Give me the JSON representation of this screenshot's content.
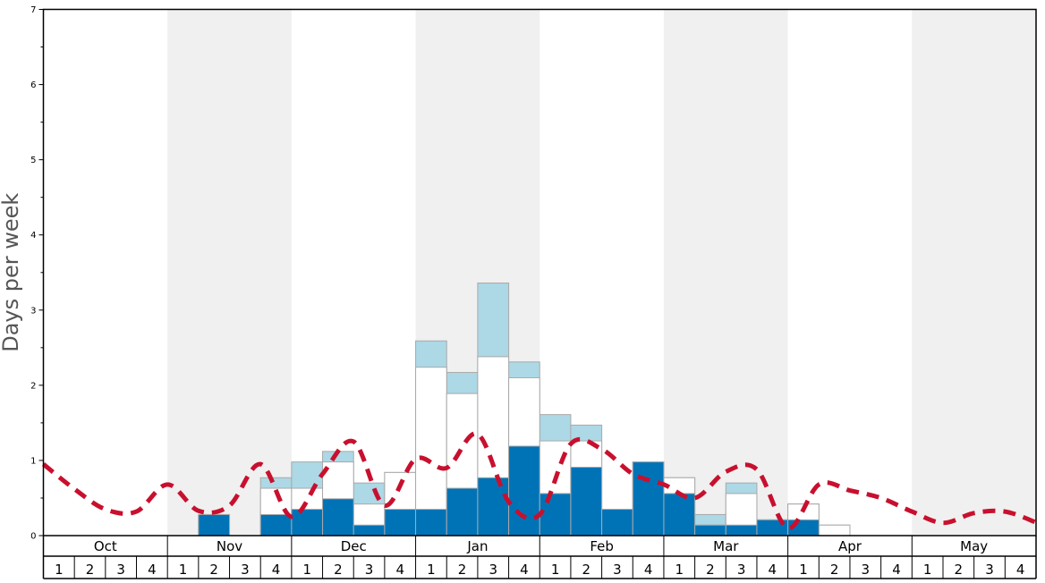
{
  "colors": {
    "band_shade": "#f0f0f0",
    "bar_dark": "#0073b7",
    "bar_mid": "#ffffff",
    "bar_light": "#add8e6",
    "bar_stroke": "#a9a9a9",
    "line": "#c8102e",
    "axis": "#000000",
    "ylabel": "#555555"
  },
  "chart_data": {
    "type": "bar",
    "ylabel": "Days per week",
    "ylim": [
      0,
      7
    ],
    "yticks": [
      "0",
      "1",
      "2",
      "3",
      "4",
      "5",
      "6",
      "7"
    ],
    "months": [
      "Oct",
      "Nov",
      "Dec",
      "Jan",
      "Feb",
      "Mar",
      "Apr",
      "May"
    ],
    "weeks": [
      "1",
      "2",
      "3",
      "4"
    ],
    "shaded_months": [
      "Nov",
      "Jan",
      "Mar",
      "May"
    ],
    "series": [
      {
        "values": [
          0,
          0,
          0,
          0,
          0,
          0.28,
          0,
          0.28,
          0.35,
          0.49,
          0.14,
          0.35,
          0.35,
          0.63,
          0.77,
          1.19,
          0.56,
          0.91,
          0.35,
          0.98,
          0.56,
          0.14,
          0.14,
          0.21,
          0.21,
          0,
          0,
          0,
          0,
          0,
          0,
          0
        ]
      },
      {
        "values": [
          0,
          0,
          0,
          0,
          0,
          0.28,
          0,
          0.63,
          0.63,
          0.98,
          0.42,
          0.84,
          2.24,
          1.89,
          2.38,
          2.1,
          1.26,
          1.26,
          0.35,
          0.98,
          0.77,
          0.14,
          0.56,
          0.21,
          0.42,
          0.14,
          0,
          0,
          0,
          0,
          0,
          0
        ]
      },
      {
        "values": [
          0,
          0,
          0,
          0,
          0,
          0.28,
          0,
          0.77,
          0.98,
          1.12,
          0.7,
          0.84,
          2.59,
          2.17,
          3.36,
          2.31,
          1.61,
          1.47,
          0.35,
          0.98,
          0.77,
          0.28,
          0.7,
          0.21,
          0.42,
          0.14,
          0,
          0,
          0,
          0,
          0,
          0
        ]
      },
      {
        "values": [
          0.95,
          0.62,
          0.35,
          0.32,
          0.68,
          0.33,
          0.4,
          0.95,
          0.25,
          0.82,
          1.25,
          0.4,
          1.02,
          0.9,
          1.35,
          0.45,
          0.28,
          1.22,
          1.15,
          0.82,
          0.68,
          0.5,
          0.85,
          0.88,
          0.1,
          0.68,
          0.6,
          0.5,
          0.32,
          0.17,
          0.3,
          0.32
        ]
      }
    ]
  }
}
